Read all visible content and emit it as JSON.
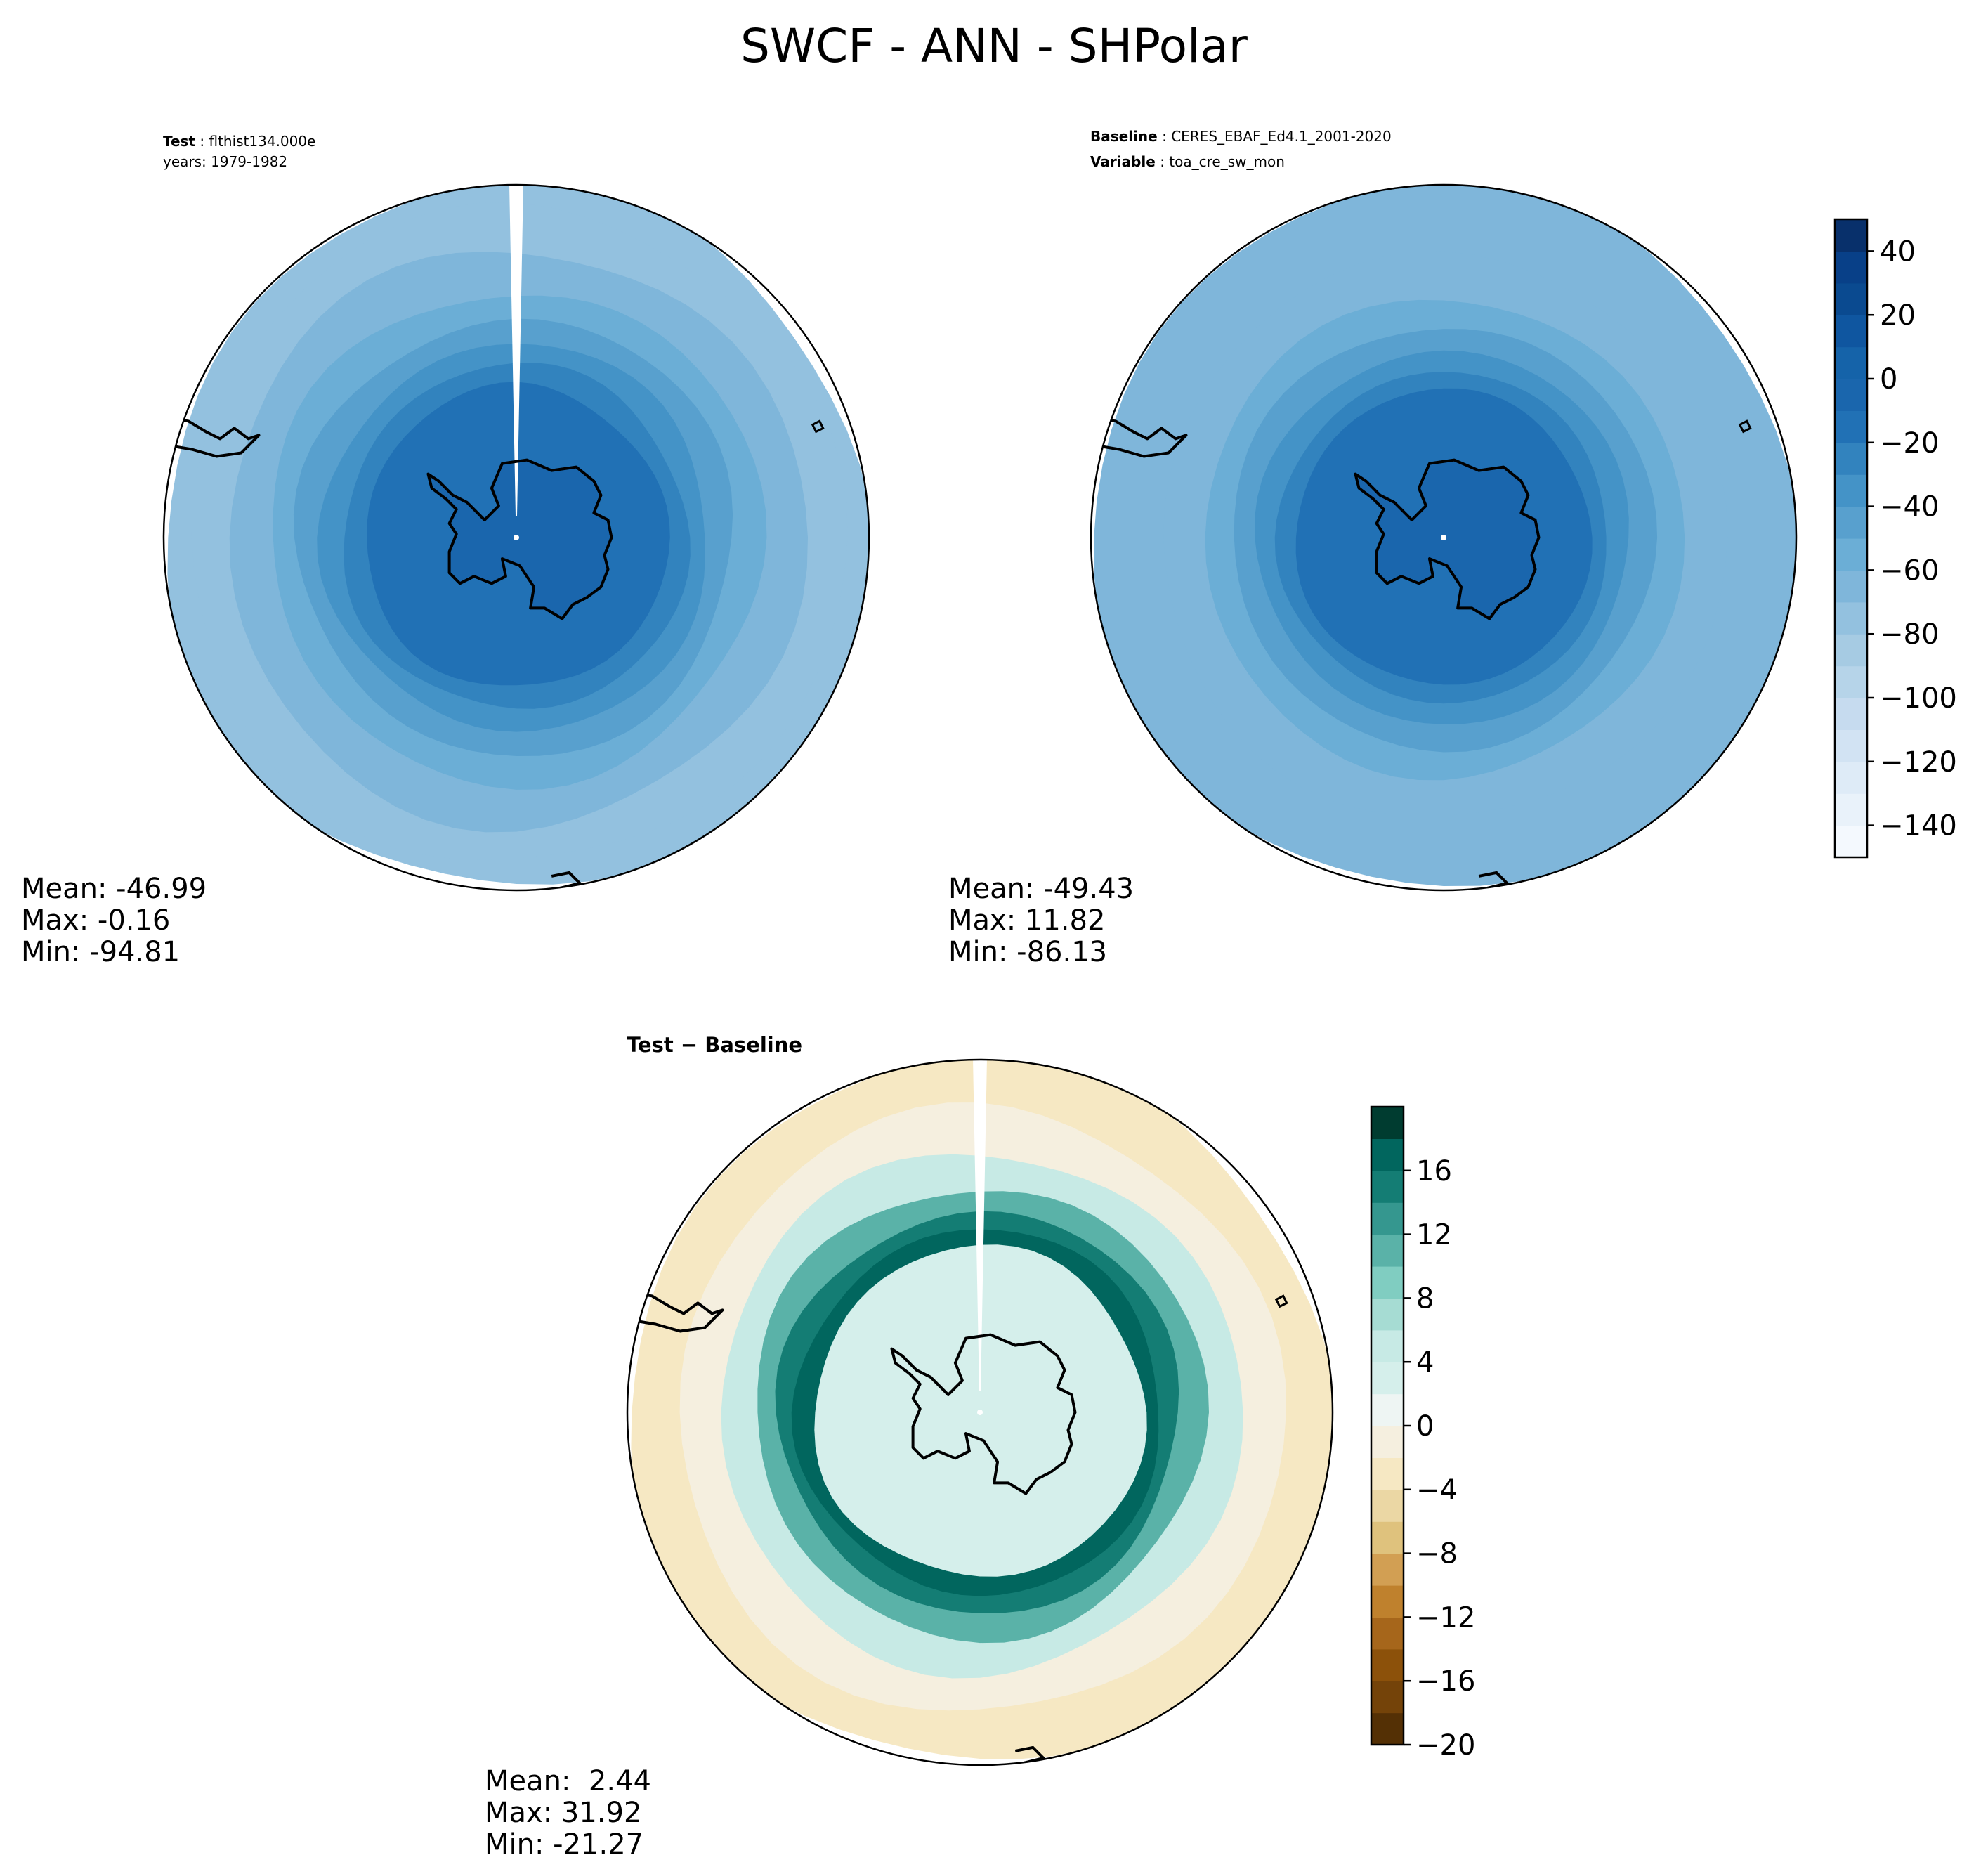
{
  "title": "SWCF - ANN - SHPolar",
  "chart_data": [
    {
      "type": "heatmap",
      "panel": "test",
      "caption": [
        {
          "key": "Test",
          "text": "flthist134.000e"
        },
        {
          "key": "",
          "text": "years: 1979-1982"
        }
      ],
      "stats": [
        "Mean: -46.99",
        "Max: -0.16",
        "Min: -94.81"
      ],
      "rings": [
        {
          "r": 1.0,
          "v": -78
        },
        {
          "r": 0.93,
          "v": -72
        },
        {
          "r": 0.82,
          "v": -66
        },
        {
          "r": 0.7,
          "v": -57
        },
        {
          "r": 0.62,
          "v": -48
        },
        {
          "r": 0.55,
          "v": -38
        },
        {
          "r": 0.49,
          "v": -28
        },
        {
          "r": 0.43,
          "v": -18
        }
      ],
      "land_value": -10,
      "missing_meridian": true
    },
    {
      "type": "heatmap",
      "panel": "baseline",
      "caption": [
        {
          "key": "Baseline",
          "text": "CERES_EBAF_Ed4.1_2001-2020"
        },
        {
          "key": "Variable",
          "text": "toa_cre_sw_mon"
        }
      ],
      "stats": [
        "Mean: -49.43",
        "Max: 11.82",
        "Min: -86.13"
      ],
      "rings": [
        {
          "r": 1.0,
          "v": -70
        },
        {
          "r": 0.8,
          "v": -68
        },
        {
          "r": 0.68,
          "v": -57
        },
        {
          "r": 0.6,
          "v": -46
        },
        {
          "r": 0.53,
          "v": -35
        },
        {
          "r": 0.47,
          "v": -25
        },
        {
          "r": 0.42,
          "v": -16
        }
      ],
      "land_value": -10,
      "missing_meridian": false,
      "colorbar": {
        "levels": [
          -150,
          -140,
          -130,
          -120,
          -110,
          -100,
          -90,
          -80,
          -70,
          -60,
          -50,
          -40,
          -30,
          -20,
          -10,
          0,
          10,
          20,
          30,
          40
        ],
        "ticks": [
          40,
          20,
          0,
          -20,
          -40,
          -60,
          -80,
          -100,
          -120,
          -140
        ],
        "tick_labels": [
          "40",
          "20",
          "0",
          "−20",
          "−40",
          "−60",
          "−80",
          "−100",
          "−120",
          "−140"
        ],
        "colors": [
          "#f4f9fe",
          "#e9f2fa",
          "#deebf7",
          "#d2e3f3",
          "#c6dbef",
          "#b6d4e9",
          "#a6cbe3",
          "#93c1df",
          "#7fb6da",
          "#6baed6",
          "#58a0ce",
          "#4493c7",
          "#3283be",
          "#2171b5",
          "#1a66ad",
          "#1563a9",
          "#0f56a0",
          "#0a4a90",
          "#084088",
          "#08306b"
        ]
      }
    },
    {
      "type": "heatmap",
      "panel": "difference",
      "caption": [
        {
          "key": "Test − Baseline",
          "text": ""
        }
      ],
      "stats": [
        "Mean:  2.44",
        "Max: 31.92",
        "Min: -21.27"
      ],
      "rings": [
        {
          "r": 1.0,
          "v": -4
        },
        {
          "r": 0.86,
          "v": -1
        },
        {
          "r": 0.74,
          "v": 5
        },
        {
          "r": 0.64,
          "v": 10
        },
        {
          "r": 0.57,
          "v": 14
        },
        {
          "r": 0.52,
          "v": 17
        },
        {
          "r": 0.47,
          "v": 3
        }
      ],
      "land_value": 2,
      "missing_meridian": true,
      "colorbar": {
        "levels": [
          -20,
          -18,
          -16,
          -14,
          -12,
          -10,
          -8,
          -6,
          -4,
          -2,
          0,
          2,
          4,
          6,
          8,
          10,
          12,
          14,
          16,
          18
        ],
        "ticks": [
          16,
          12,
          8,
          4,
          0,
          -4,
          -8,
          -12,
          -16,
          -20
        ],
        "tick_labels": [
          "16",
          "12",
          "8",
          "4",
          "0",
          "−4",
          "−8",
          "−12",
          "−16",
          "−20"
        ],
        "colors": [
          "#543005",
          "#744309",
          "#8c510a",
          "#a6661b",
          "#bf812d",
          "#d29f53",
          "#dfc27d",
          "#ebd7a4",
          "#f6e8c3",
          "#f5efdf",
          "#eef5f3",
          "#d5efeb",
          "#c7eae5",
          "#a6dcd3",
          "#80cdc1",
          "#5ab2a8",
          "#35978f",
          "#147d74",
          "#01665e",
          "#003c30"
        ]
      }
    }
  ]
}
